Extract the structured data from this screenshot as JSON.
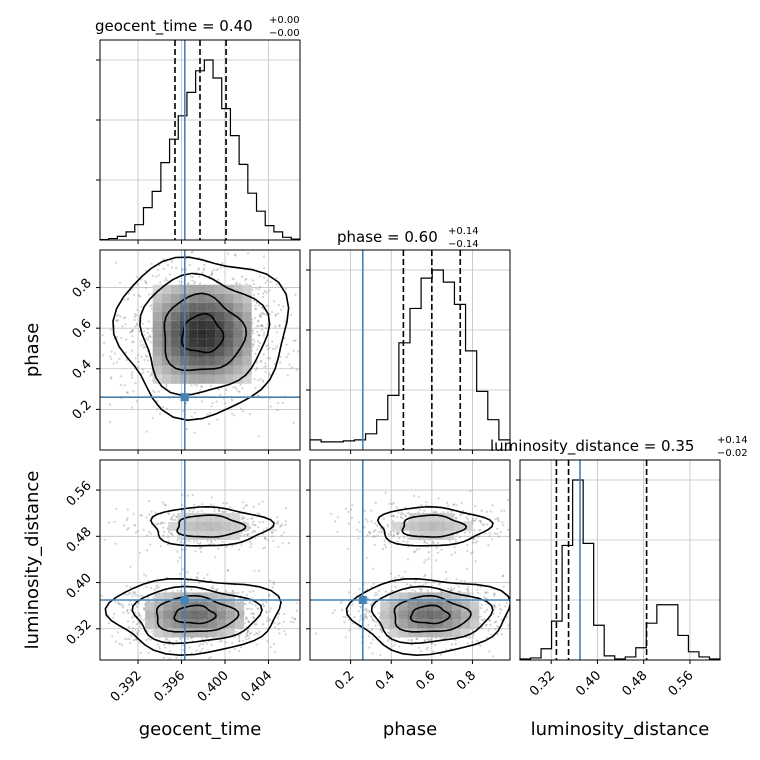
{
  "chart_data": {
    "type": "corner",
    "parameters": [
      {
        "name": "geocent_time",
        "axis_label": "geocent_time",
        "range": [
          0.3885,
          0.4069
        ],
        "ticks": [
          0.392,
          0.396,
          0.4,
          0.404
        ],
        "tick_labels": [
          "0.392",
          "0.396",
          "0.400",
          "0.404"
        ],
        "truth": 0.3963,
        "quantiles": [
          0.3954,
          0.3977,
          0.4001
        ],
        "title": {
          "prefix": "geocent_time = ",
          "value": "0.40",
          "plus": "+0.00",
          "minus": "−0.00"
        },
        "histogram": [
          0.2,
          0.8,
          2.0,
          4.5,
          8.5,
          18,
          27,
          43,
          56,
          69,
          82,
          94,
          100,
          90,
          73,
          58,
          42,
          26,
          16,
          8,
          4.5,
          1.5,
          0.5
        ]
      },
      {
        "name": "phase",
        "axis_label": "phase",
        "range": [
          0.0,
          0.985
        ],
        "ticks": [
          0.2,
          0.4,
          0.6,
          0.8
        ],
        "tick_labels": [
          "0.2",
          "0.4",
          "0.6",
          "0.8"
        ],
        "truth": 0.26,
        "quantiles": [
          0.46,
          0.6,
          0.74
        ],
        "title": {
          "prefix": "phase = ",
          "value": "0.60",
          "plus": "+0.14",
          "minus": "−0.14"
        },
        "histogram": [
          5,
          4,
          4,
          4.5,
          5,
          8,
          15,
          27,
          53,
          70,
          85,
          89,
          83,
          72,
          49,
          29,
          15,
          5
        ]
      },
      {
        "name": "luminosity_distance",
        "axis_label": "luminosity_distance",
        "range": [
          0.266,
          0.612
        ],
        "ticks": [
          0.32,
          0.4,
          0.48,
          0.56
        ],
        "tick_labels": [
          "0.32",
          "0.40",
          "0.48",
          "0.56"
        ],
        "truth": 0.3698,
        "quantiles": [
          0.329,
          0.35,
          0.485
        ],
        "title": {
          "prefix": "luminosity_distance = ",
          "value": "0.35",
          "plus": "+0.14",
          "minus": "−0.02"
        },
        "histogram": [
          0.5,
          1.0,
          5.5,
          19,
          56,
          88,
          57,
          17,
          2.0,
          0.5,
          1.5,
          6,
          18,
          27,
          27,
          12,
          4,
          1.5,
          0.5
        ]
      }
    ],
    "pair_panels": [
      {
        "x": "geocent_time",
        "y": "phase",
        "truth": [
          0.3963,
          0.26
        ],
        "density_peak": [
          0.3979,
          0.57
        ],
        "contour_levels": [
          "inner",
          "middle",
          "outer"
        ]
      },
      {
        "x": "geocent_time",
        "y": "luminosity_distance",
        "truth": [
          0.3963,
          0.3698
        ],
        "density_peaks": [
          [
            0.3972,
            0.344
          ],
          [
            0.3985,
            0.497
          ]
        ]
      },
      {
        "x": "phase",
        "y": "luminosity_distance",
        "truth": [
          0.26,
          0.3698
        ],
        "density_peaks": [
          [
            0.59,
            0.344
          ],
          [
            0.6,
            0.497
          ]
        ]
      }
    ],
    "grid": true,
    "colors": {
      "truth": "#4682b4",
      "histogram": "#000000",
      "quantile": "#000000",
      "grid": "#c0c0c0",
      "points": "#7f7f7f"
    }
  }
}
